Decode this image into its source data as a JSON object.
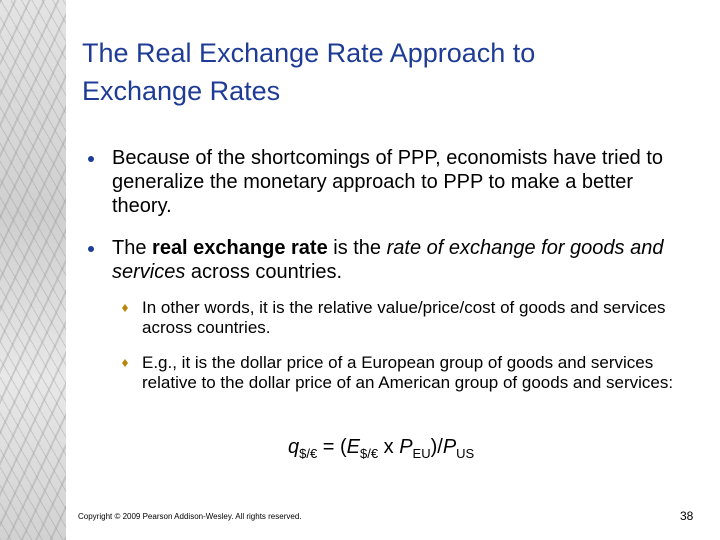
{
  "title": "The Real Exchange Rate Approach to Exchange Rates",
  "bullets": [
    {
      "segments": [
        {
          "text": "Because of the shortcomings of PPP, economists have tried to generalize the monetary approach to PPP to make a better theory.",
          "style": "normal"
        }
      ]
    },
    {
      "segments": [
        {
          "text": "The ",
          "style": "normal"
        },
        {
          "text": "real exchange rate",
          "style": "bold"
        },
        {
          "text": " is the ",
          "style": "normal"
        },
        {
          "text": "rate of exchange for goods and services",
          "style": "italic"
        },
        {
          "text": " across countries.",
          "style": "normal"
        }
      ],
      "sub_bullets": [
        {
          "segments": [
            {
              "text": "In other words, it is the relative value/price/cost of goods and services across countries.",
              "style": "normal"
            }
          ]
        },
        {
          "segments": [
            {
              "text": "E.g., it is the dollar price of a European group of goods and services relative to the dollar price of an American group of goods and services:",
              "style": "normal"
            }
          ]
        }
      ]
    }
  ],
  "formula": {
    "segments": [
      {
        "text": "q",
        "style": "italic"
      },
      {
        "text": "$/€",
        "style": "sub"
      },
      {
        "text": " = (",
        "style": "normal"
      },
      {
        "text": "E",
        "style": "italic"
      },
      {
        "text": "$/€",
        "style": "sub"
      },
      {
        "text": " x ",
        "style": "normal"
      },
      {
        "text": "P",
        "style": "italic"
      },
      {
        "text": "EU",
        "style": "sub"
      },
      {
        "text": ")/",
        "style": "normal"
      },
      {
        "text": "P",
        "style": "italic"
      },
      {
        "text": "US",
        "style": "sub"
      }
    ]
  },
  "footer": {
    "copyright": "Copyright © 2009 Pearson Addison-Wesley. All rights reserved.",
    "page_number": "38"
  }
}
